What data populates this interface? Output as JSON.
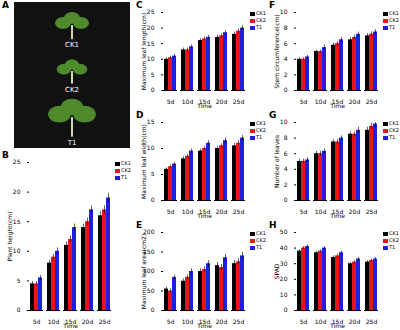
{
  "photo": {
    "panel": "A",
    "captions": [
      "CK1",
      "CK2",
      "T1"
    ]
  },
  "chart_data": [
    {
      "type": "bar",
      "panel": "B",
      "x_label": "Time",
      "y_label": "Plant height(cm)",
      "categories": [
        "5d",
        "10d",
        "15d",
        "20d",
        "25d"
      ],
      "series": [
        {
          "name": "CK1",
          "color": "#000000",
          "values": [
            4.5,
            8,
            11,
            14,
            16
          ],
          "error": [
            0.4,
            0.5,
            0.6,
            0.6,
            0.7
          ]
        },
        {
          "name": "CK2",
          "color": "#e8141b",
          "values": [
            4.5,
            9,
            12,
            15,
            17
          ],
          "error": [
            0.4,
            0.5,
            0.6,
            0.6,
            0.7
          ]
        },
        {
          "name": "T1",
          "color": "#1f1fe0",
          "values": [
            5.5,
            10,
            14,
            17,
            19
          ],
          "error": [
            0.4,
            0.6,
            0.6,
            0.7,
            0.8
          ]
        }
      ],
      "ylim": [
        0,
        25
      ],
      "yticks": [
        0,
        5,
        10,
        15,
        20,
        25
      ],
      "grid": false,
      "legend": "top-right"
    },
    {
      "type": "bar",
      "panel": "C",
      "x_label": "Time",
      "y_label": "Maximum leaf length(cm)",
      "categories": [
        "5d",
        "10d",
        "15d",
        "20d",
        "25d"
      ],
      "series": [
        {
          "name": "CK1",
          "color": "#000000",
          "values": [
            10,
            13,
            16,
            17,
            18
          ],
          "error": [
            0.5,
            0.6,
            0.6,
            0.7,
            0.7
          ]
        },
        {
          "name": "CK2",
          "color": "#e8141b",
          "values": [
            10.5,
            13,
            16.5,
            17.5,
            19
          ],
          "error": [
            0.5,
            0.6,
            0.6,
            0.7,
            0.7
          ]
        },
        {
          "name": "T1",
          "color": "#1f1fe0",
          "values": [
            11,
            14,
            17,
            18.5,
            20
          ],
          "error": [
            0.5,
            0.6,
            0.7,
            0.7,
            0.8
          ]
        }
      ],
      "ylim": [
        0,
        25
      ],
      "yticks": [
        0,
        5,
        10,
        15,
        20,
        25
      ],
      "grid": false,
      "legend": "top-right"
    },
    {
      "type": "bar",
      "panel": "D",
      "x_label": "Time",
      "y_label": "Maximum leaf width(cm)",
      "categories": [
        "5d",
        "10d",
        "15d",
        "20d",
        "25d"
      ],
      "series": [
        {
          "name": "CK1",
          "color": "#000000",
          "values": [
            6,
            8,
            9.5,
            10,
            10.5
          ],
          "error": [
            0.3,
            0.4,
            0.4,
            0.4,
            0.5
          ]
        },
        {
          "name": "CK2",
          "color": "#e8141b",
          "values": [
            6.5,
            8.5,
            10,
            10.5,
            11
          ],
          "error": [
            0.3,
            0.4,
            0.4,
            0.4,
            0.5
          ]
        },
        {
          "name": "T1",
          "color": "#1f1fe0",
          "values": [
            7,
            9.5,
            11,
            11.5,
            12
          ],
          "error": [
            0.3,
            0.4,
            0.5,
            0.5,
            0.5
          ]
        }
      ],
      "ylim": [
        0,
        15
      ],
      "yticks": [
        0,
        5,
        10,
        15
      ],
      "grid": false,
      "legend": "top-right"
    },
    {
      "type": "bar",
      "panel": "E",
      "x_label": "Time",
      "y_label": "Maximum leaf area(cm2)",
      "categories": [
        "5d",
        "10d",
        "15d",
        "20d",
        "25d"
      ],
      "series": [
        {
          "name": "CK1",
          "color": "#000000",
          "values": [
            55,
            75,
            100,
            115,
            120
          ],
          "error": [
            5,
            6,
            7,
            8,
            8
          ]
        },
        {
          "name": "CK2",
          "color": "#e8141b",
          "values": [
            50,
            85,
            105,
            110,
            125
          ],
          "error": [
            5,
            6,
            7,
            8,
            8
          ]
        },
        {
          "name": "T1",
          "color": "#1f1fe0",
          "values": [
            85,
            100,
            120,
            135,
            140
          ],
          "error": [
            6,
            7,
            8,
            9,
            9
          ]
        }
      ],
      "ylim": [
        0,
        200
      ],
      "yticks": [
        0,
        50,
        100,
        150,
        200
      ],
      "grid": false,
      "legend": "top-right"
    },
    {
      "type": "bar",
      "panel": "F",
      "x_label": "Time",
      "y_label": "Stem circumference(cm)",
      "categories": [
        "5d",
        "10d",
        "15d",
        "20d",
        "25d"
      ],
      "series": [
        {
          "name": "CK1",
          "color": "#000000",
          "values": [
            4,
            5,
            5.8,
            6.5,
            7
          ],
          "error": [
            0.2,
            0.2,
            0.3,
            0.3,
            0.3
          ]
        },
        {
          "name": "CK2",
          "color": "#e8141b",
          "values": [
            4,
            5,
            6,
            6.8,
            7.2
          ],
          "error": [
            0.2,
            0.2,
            0.3,
            0.3,
            0.3
          ]
        },
        {
          "name": "T1",
          "color": "#1f1fe0",
          "values": [
            4.3,
            5.5,
            6.5,
            7.2,
            7.5
          ],
          "error": [
            0.2,
            0.3,
            0.3,
            0.3,
            0.3
          ]
        }
      ],
      "ylim": [
        0,
        10
      ],
      "yticks": [
        0,
        2,
        4,
        6,
        8,
        10
      ],
      "grid": false,
      "legend": "top-right"
    },
    {
      "type": "bar",
      "panel": "G",
      "x_label": "Time",
      "y_label": "Number of leaves",
      "categories": [
        "5d",
        "10d",
        "15d",
        "20d",
        "25d"
      ],
      "series": [
        {
          "name": "CK1",
          "color": "#000000",
          "values": [
            5,
            6,
            7.5,
            8.5,
            9
          ],
          "error": [
            0.3,
            0.3,
            0.3,
            0.3,
            0.4
          ]
        },
        {
          "name": "CK2",
          "color": "#e8141b",
          "values": [
            5,
            6,
            7.5,
            8.5,
            9.5
          ],
          "error": [
            0.3,
            0.3,
            0.3,
            0.3,
            0.4
          ]
        },
        {
          "name": "T1",
          "color": "#1f1fe0",
          "values": [
            5.2,
            6.3,
            8,
            9,
            9.8
          ],
          "error": [
            0.3,
            0.3,
            0.3,
            0.4,
            0.4
          ]
        }
      ],
      "ylim": [
        0,
        10
      ],
      "yticks": [
        0,
        2,
        4,
        6,
        8,
        10
      ],
      "grid": false,
      "legend": "top-right"
    },
    {
      "type": "bar",
      "panel": "H",
      "x_label": "Time",
      "y_label": "SPAD",
      "categories": [
        "5d",
        "10d",
        "15d",
        "20d",
        "25d"
      ],
      "series": [
        {
          "name": "CK1",
          "color": "#000000",
          "values": [
            38,
            37,
            34,
            30,
            31
          ],
          "error": [
            1,
            1,
            1,
            1,
            1
          ]
        },
        {
          "name": "CK2",
          "color": "#e8141b",
          "values": [
            40,
            38,
            35,
            31,
            32
          ],
          "error": [
            1,
            1,
            1,
            1,
            1
          ]
        },
        {
          "name": "T1",
          "color": "#1f1fe0",
          "values": [
            41,
            40,
            37,
            33,
            33
          ],
          "error": [
            1,
            1,
            1,
            1,
            1
          ]
        }
      ],
      "ylim": [
        0,
        50
      ],
      "yticks": [
        0,
        10,
        20,
        30,
        40,
        50
      ],
      "grid": false,
      "legend": "top-right"
    }
  ]
}
